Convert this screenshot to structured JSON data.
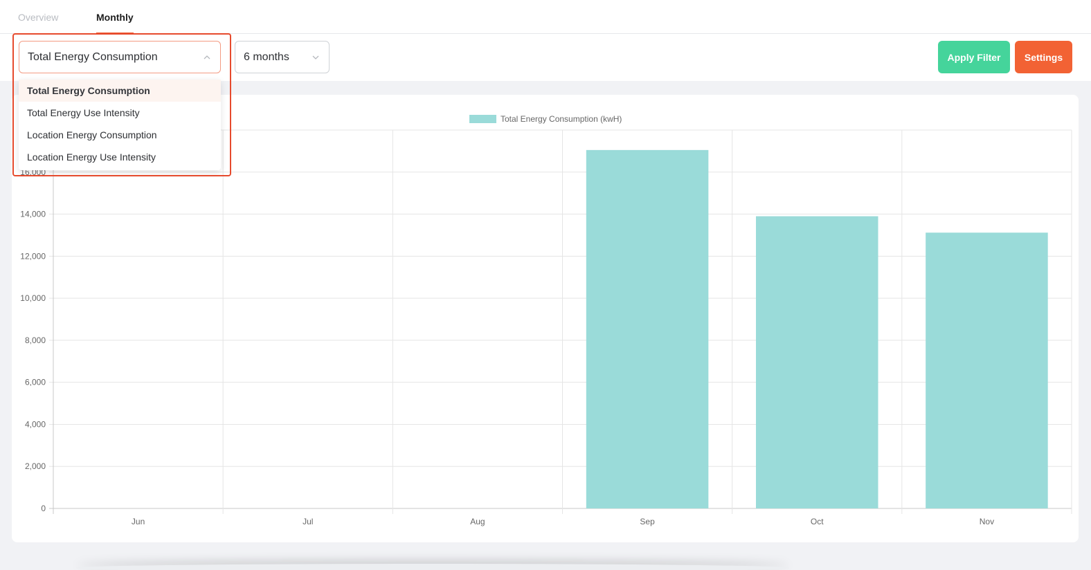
{
  "tabs": [
    {
      "label": "Overview",
      "active": false
    },
    {
      "label": "Monthly",
      "active": true
    }
  ],
  "filters": {
    "metric": {
      "selected": "Total Energy Consumption",
      "options": [
        "Total Energy Consumption",
        "Total Energy Use Intensity",
        "Location Energy Consumption",
        "Location Energy Use Intensity"
      ]
    },
    "period": {
      "selected": "6 months"
    }
  },
  "buttons": {
    "apply": "Apply Filter",
    "settings": "Settings"
  },
  "colors": {
    "accent": "#ef5b34",
    "apply": "#45d49b",
    "settings": "#f26234",
    "bar": "#9adbd9"
  },
  "chart_data": {
    "type": "bar",
    "categories": [
      "Jun",
      "Jul",
      "Aug",
      "Sep",
      "Oct",
      "Nov"
    ],
    "series": [
      {
        "name": "Total Energy Consumption (kwH)",
        "values": [
          0,
          0,
          0,
          17050,
          13900,
          13120
        ]
      }
    ],
    "yticks": [
      0,
      2000,
      4000,
      6000,
      8000,
      10000,
      12000,
      14000,
      16000
    ],
    "ylim": [
      0,
      18000
    ],
    "grid": true,
    "legend": "top-center"
  }
}
